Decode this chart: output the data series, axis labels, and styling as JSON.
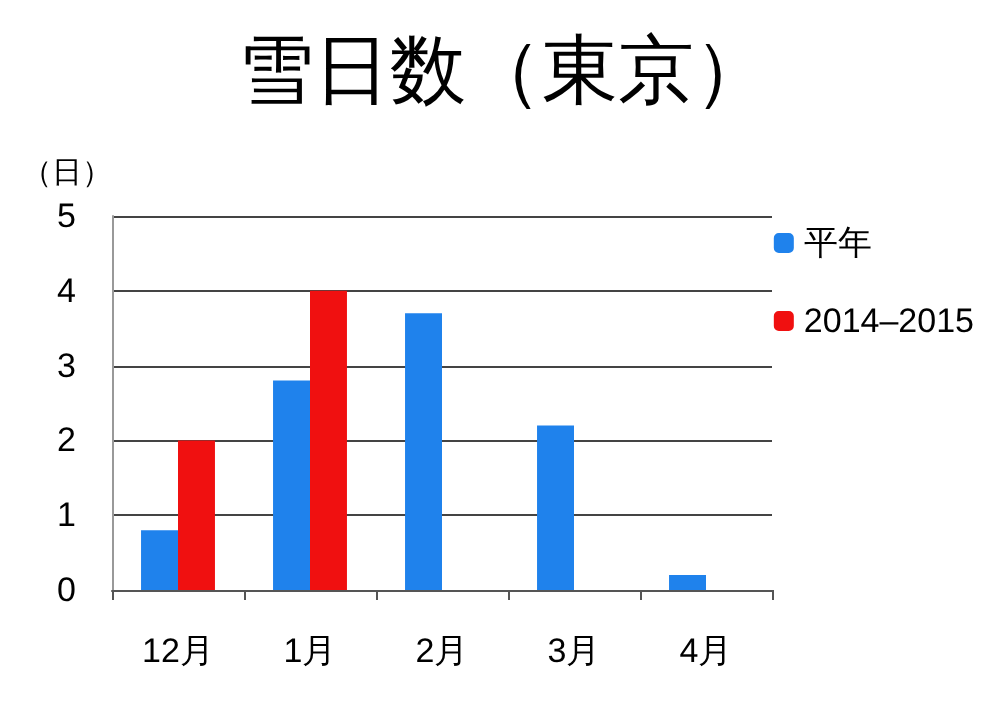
{
  "chart_data": {
    "type": "bar",
    "title": "雪日数（東京）",
    "ylabel": "（日）",
    "categories": [
      "12月",
      "1月",
      "2月",
      "3月",
      "4月"
    ],
    "series": [
      {
        "name": "平年",
        "color": "#1f82ec",
        "values": [
          0.8,
          2.8,
          3.7,
          2.2,
          0.2
        ]
      },
      {
        "name": "2014–2015",
        "color": "#f01010",
        "values": [
          2,
          4,
          null,
          null,
          null
        ]
      }
    ],
    "ylim": [
      0,
      5
    ],
    "yticks": [
      0,
      1,
      2,
      3,
      4,
      5
    ],
    "grid": "y",
    "legend": "right"
  }
}
